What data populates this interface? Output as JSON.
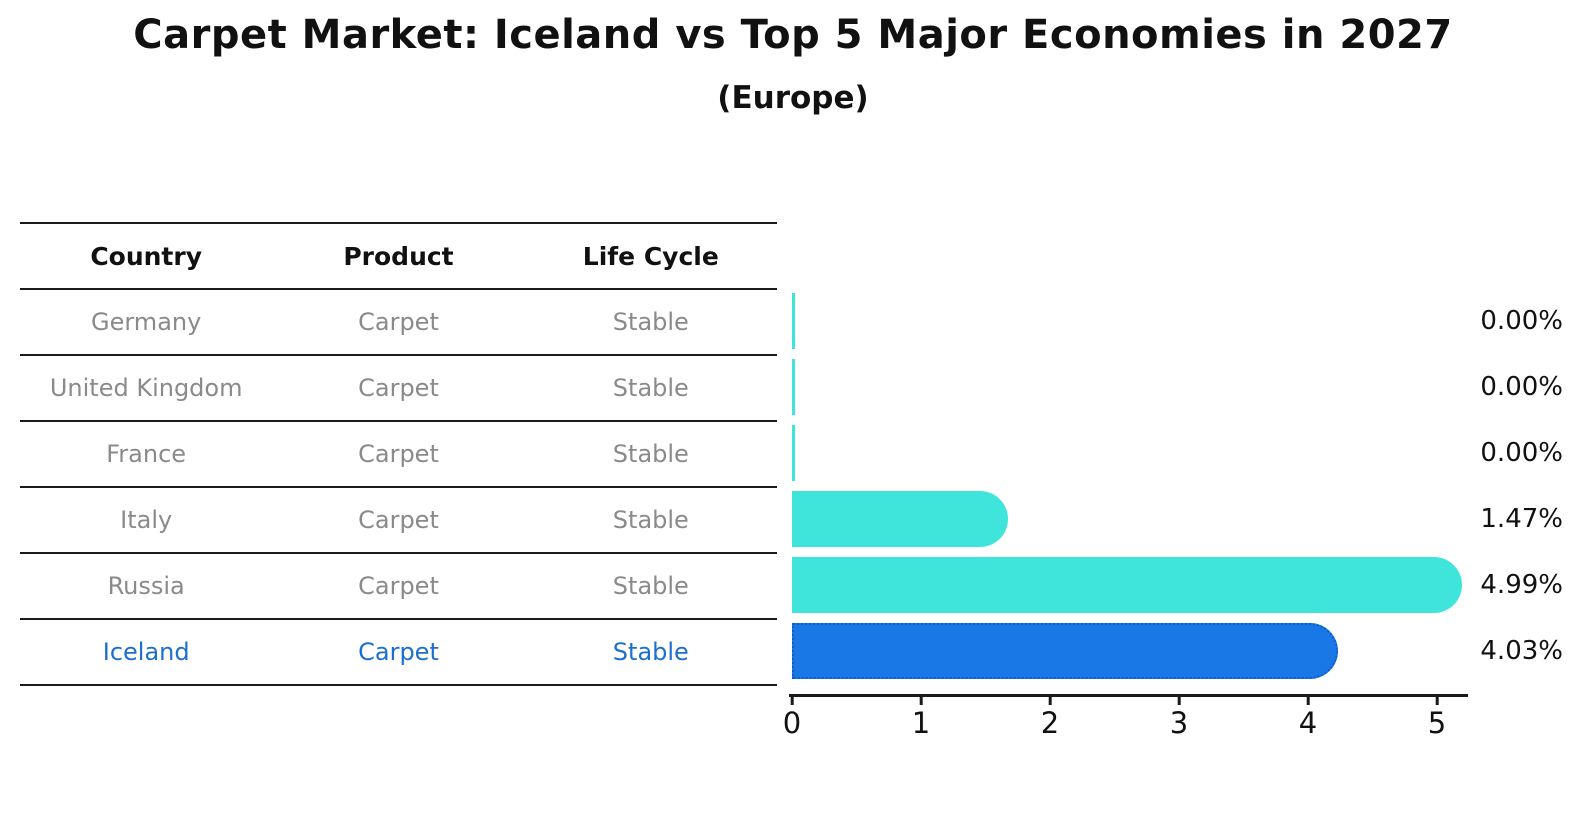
{
  "header": {
    "title": "Carpet Market: Iceland vs Top 5 Major Economies in 2027",
    "subtitle": "(Europe)"
  },
  "table": {
    "headers": [
      "Country",
      "Product",
      "Life Cycle"
    ],
    "rows": [
      [
        "Germany",
        "Carpet",
        "Stable"
      ],
      [
        "United Kingdom",
        "Carpet",
        "Stable"
      ],
      [
        "France",
        "Carpet",
        "Stable"
      ],
      [
        "Italy",
        "Carpet",
        "Stable"
      ],
      [
        "Russia",
        "Carpet",
        "Stable"
      ],
      [
        "Iceland",
        "Carpet",
        "Stable"
      ]
    ],
    "highlight_row": "Iceland"
  },
  "chart_data": {
    "type": "bar",
    "orientation": "horizontal",
    "title": "Carpet Market: Iceland vs Top 5 Major Economies in 2027",
    "subtitle": "(Europe)",
    "categories": [
      "Germany",
      "United Kingdom",
      "France",
      "Italy",
      "Russia",
      "Iceland"
    ],
    "values": [
      0.0,
      0.0,
      0.0,
      1.47,
      4.99,
      4.03
    ],
    "value_labels": [
      "0.00%",
      "0.00%",
      "0.00%",
      "1.47%",
      "4.99%",
      "4.03%"
    ],
    "xlim": [
      0,
      5.25
    ],
    "x_ticks": [
      "0",
      "1",
      "2",
      "3",
      "4",
      "5"
    ],
    "grid": false,
    "legend": false,
    "highlight_index": 5,
    "colors": {
      "bar_default": "#3fe5db",
      "bar_highlight": "#1a78e6",
      "bar_highlight_border": "#0c5ecc",
      "highlight_text": "#1c6fce",
      "table_text": "#8a8a8a",
      "axis_text": "#111111"
    }
  }
}
